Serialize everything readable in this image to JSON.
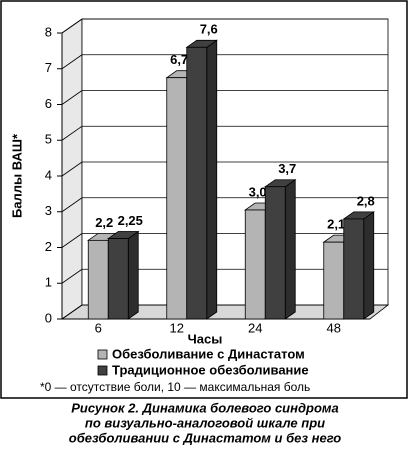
{
  "chart_data": {
    "type": "bar3d",
    "categories": [
      "6",
      "12",
      "24",
      "48"
    ],
    "x_label": "Часы",
    "y_label": "Баллы ВАШ*",
    "ylim": [
      0,
      8
    ],
    "yticks": [
      0,
      1,
      2,
      3,
      4,
      5,
      6,
      7,
      8
    ],
    "grid": true,
    "series": [
      {
        "name": "Обезболивание с Династатом",
        "color": "#b4b4b4",
        "values": [
          2.2,
          6.75,
          3.05,
          2.15
        ],
        "value_labels": [
          "2,2",
          "6,75",
          "3,05",
          "2,15"
        ]
      },
      {
        "name": "Традиционное обезболивание",
        "color": "#404040",
        "values": [
          2.25,
          7.6,
          3.7,
          2.8
        ],
        "value_labels": [
          "2,25",
          "7,6",
          "3,7",
          "2,8"
        ]
      }
    ],
    "footnote": "*0 — отсутствие боли, 10 — максимальная боль",
    "caption": [
      "Рисунок 2. Динамика болевого синдрома",
      "по визуально-аналоговой шкале при",
      "обезболивании с Династатом и без него"
    ]
  }
}
